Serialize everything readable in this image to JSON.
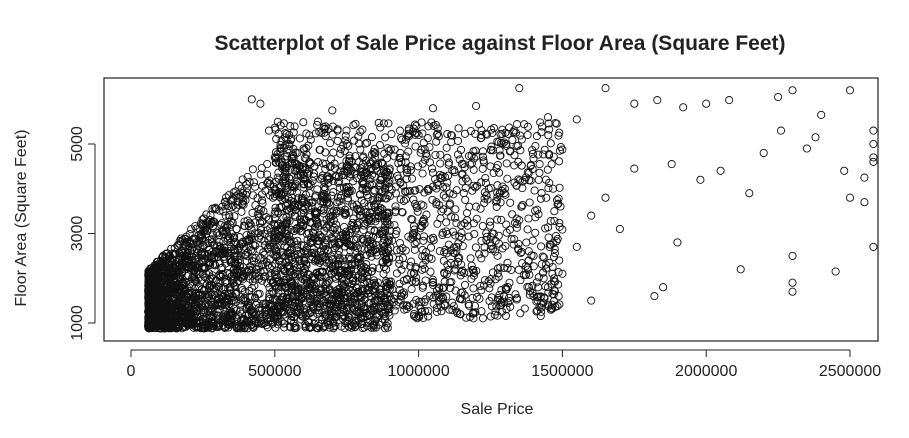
{
  "chart_data": {
    "type": "scatter",
    "title": "Scatterplot of Sale Price against Floor Area (Square Feet)",
    "xlabel": "Sale Price",
    "ylabel": "Floor Area (Square Feet)",
    "xlim": [
      0,
      2700000
    ],
    "ylim": [
      800,
      6400
    ],
    "x_ticks": [
      0,
      500000,
      1000000,
      1500000,
      2000000,
      2500000
    ],
    "x_tick_labels": [
      "0",
      "500000",
      "1000000",
      "1500000",
      "2000000",
      "2500000"
    ],
    "y_ticks": [
      1000,
      3000,
      5000
    ],
    "y_tick_labels": [
      "1000",
      "3000",
      "5000"
    ],
    "marker": "open-circle",
    "marker_color": "#111111",
    "grid": false,
    "series": [
      {
        "points": [
          [
            420000,
            6000
          ],
          [
            450000,
            5900
          ],
          [
            1350000,
            6250
          ],
          [
            1650000,
            6250
          ],
          [
            2300000,
            6200
          ],
          [
            2500000,
            6200
          ],
          [
            2250000,
            6050
          ],
          [
            1830000,
            5980
          ],
          [
            1200000,
            5850
          ],
          [
            1050000,
            5800
          ],
          [
            700000,
            5750
          ],
          [
            2400000,
            5650
          ],
          [
            2000000,
            5900
          ],
          [
            1920000,
            5820
          ],
          [
            1750000,
            5900
          ],
          [
            2080000,
            5980
          ],
          [
            1450000,
            5600
          ],
          [
            1550000,
            5550
          ],
          [
            2600000,
            4600
          ],
          [
            2650000,
            5300
          ],
          [
            2650000,
            5000
          ],
          [
            2620000,
            4700
          ],
          [
            2550000,
            3700
          ],
          [
            2600000,
            2700
          ],
          [
            2450000,
            2150
          ],
          [
            2300000,
            1900
          ],
          [
            2300000,
            1700
          ],
          [
            2300000,
            2500
          ],
          [
            2150000,
            3900
          ],
          [
            2050000,
            4400
          ],
          [
            1820000,
            1600
          ],
          [
            1850000,
            1800
          ],
          [
            1600000,
            1500
          ],
          [
            1900000,
            2800
          ],
          [
            1700000,
            3100
          ],
          [
            1650000,
            3800
          ],
          [
            1600000,
            3400
          ],
          [
            1550000,
            2700
          ],
          [
            1500000,
            2100
          ],
          [
            1450000,
            1800
          ],
          [
            1400000,
            2500
          ],
          [
            1350000,
            3300
          ],
          [
            2200000,
            4800
          ],
          [
            2350000,
            4900
          ],
          [
            2480000,
            4400
          ],
          [
            2500000,
            3800
          ],
          [
            1980000,
            4200
          ],
          [
            2120000,
            2200
          ],
          [
            1880000,
            4550
          ],
          [
            1750000,
            4450
          ],
          [
            2260000,
            5300
          ],
          [
            2380000,
            5150
          ],
          [
            2550000,
            4250
          ],
          [
            1300000,
            4000
          ],
          [
            1250000,
            4500
          ],
          [
            1200000,
            3600
          ],
          [
            1150000,
            2900
          ],
          [
            1100000,
            2300
          ],
          [
            1050000,
            1900
          ],
          [
            950000,
            1300
          ],
          [
            980000,
            3000
          ],
          [
            900000,
            4300
          ],
          [
            1000000,
            5200
          ],
          [
            850000,
            4800
          ],
          [
            800000,
            3500
          ],
          [
            750000,
            5000
          ],
          [
            650000,
            5500
          ],
          [
            600000,
            4900
          ],
          [
            550000,
            5200
          ],
          [
            480000,
            5300
          ],
          [
            500000,
            4700
          ],
          [
            560000,
            3800
          ]
        ]
      }
    ],
    "cluster": {
      "n_points": 2600,
      "x_min": 60000,
      "x_max": 900000,
      "y_min": 880,
      "y_max": 4600
    },
    "mid_band": {
      "n_points": 1400,
      "x_min": 500000,
      "x_max": 1500000,
      "y_min": 1100,
      "y_max": 5500
    }
  }
}
